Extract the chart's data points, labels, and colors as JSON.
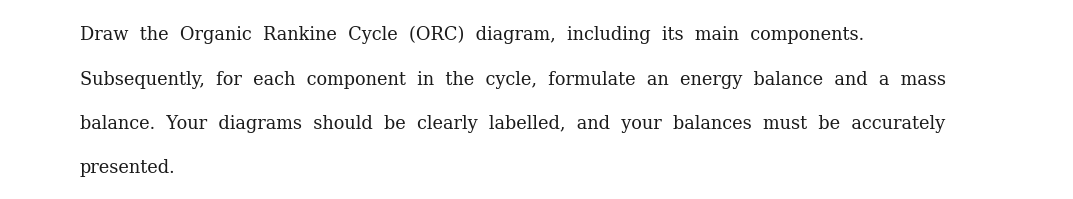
{
  "lines": [
    "Draw  the  Organic  Rankine  Cycle  (ORC)  diagram,  including  its  main  components.",
    "Subsequently,  for  each  component  in  the  cycle,  formulate  an  energy  balance  and  a  mass",
    "balance.  Your  diagrams  should  be  clearly  labelled,  and  your  balances  must  be  accurately",
    "presented."
  ],
  "background_color": "#ffffff",
  "text_color": "#1a1a1a",
  "font_size": 12.8,
  "font_family": "DejaVu Serif"
}
